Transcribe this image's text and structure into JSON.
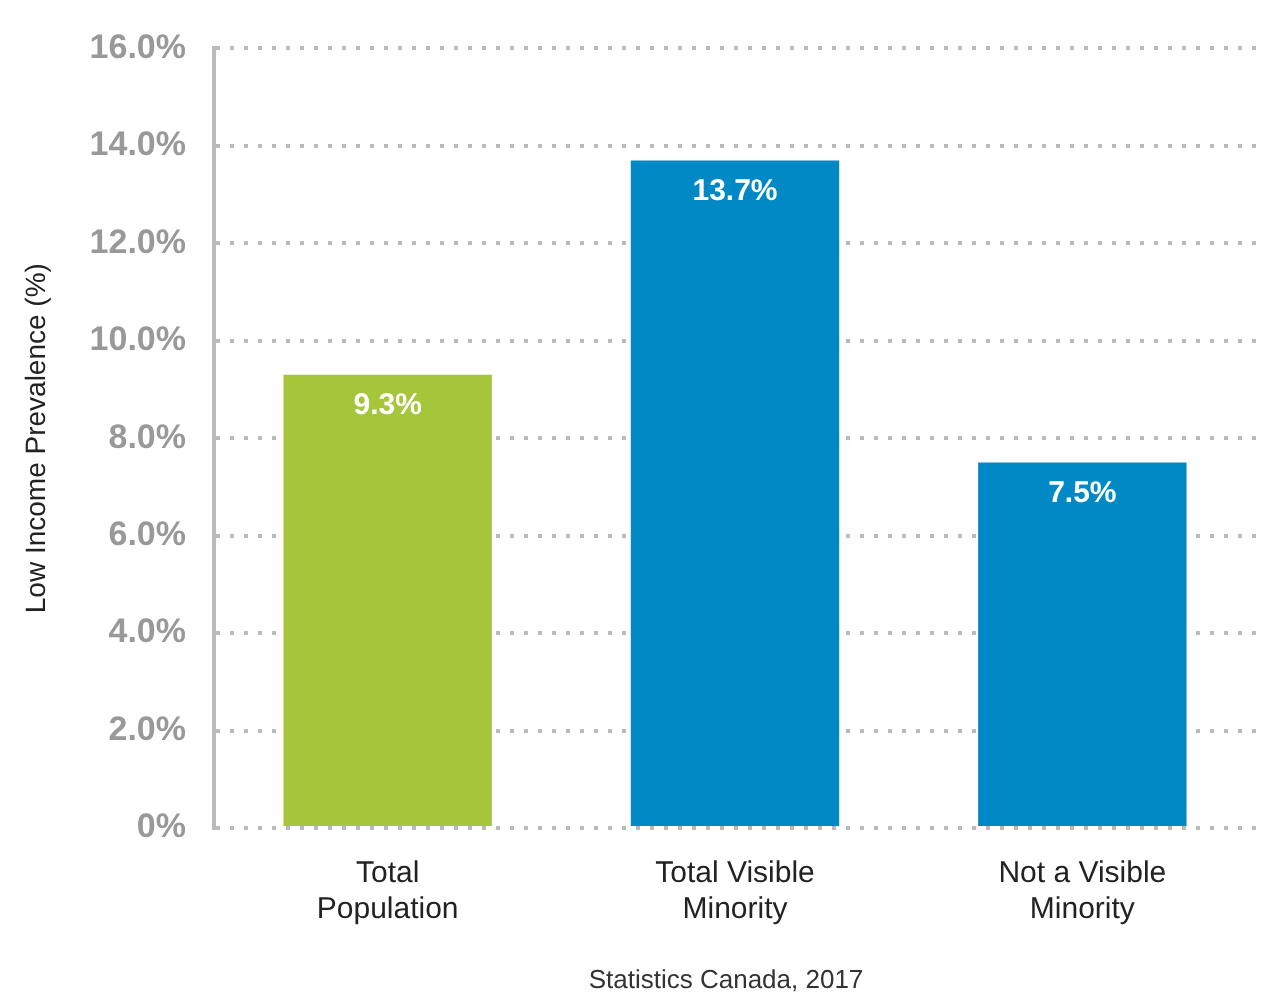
{
  "chart_data": {
    "type": "bar",
    "ylabel": "Low Income Prevalence (%)",
    "categories": [
      "Total Population",
      "Total Visible Minority",
      "Not a Visible Minority"
    ],
    "values": [
      9.3,
      13.7,
      7.5
    ],
    "colors": [
      "#a5c63b",
      "#0089c4",
      "#0089c4"
    ],
    "value_labels": [
      "9.3%",
      "13.7%",
      "7.5%"
    ],
    "ylim": [
      0,
      16
    ],
    "yticks": [
      {
        "value": 0,
        "label": "0%"
      },
      {
        "value": 2,
        "label": "2.0%"
      },
      {
        "value": 4,
        "label": "4.0%"
      },
      {
        "value": 6,
        "label": "6.0%"
      },
      {
        "value": 8,
        "label": "8.0%"
      },
      {
        "value": 10,
        "label": "10.0%"
      },
      {
        "value": 12,
        "label": "12.0%"
      },
      {
        "value": 14,
        "label": "14.0%"
      },
      {
        "value": 16,
        "label": "16.0%"
      }
    ],
    "grid": "y",
    "annotations": [
      "Statistics Canada, 2017"
    ]
  }
}
